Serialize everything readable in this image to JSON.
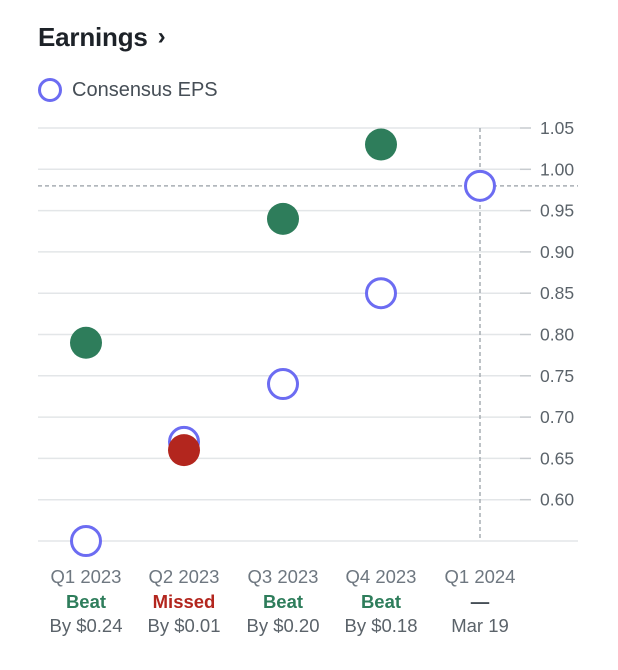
{
  "header": {
    "title": "Earnings",
    "chevron": "›"
  },
  "legend": {
    "label": "Consensus EPS"
  },
  "colors": {
    "estimate": "#6c6cf2",
    "beat": "#2e7d5b",
    "missed": "#b3261e",
    "upcoming": "#464e56",
    "grid": "#e3e6e8"
  },
  "chart_data": {
    "type": "scatter",
    "title": "Earnings",
    "ylim": [
      0.55,
      1.05
    ],
    "yticks": [
      "0.60",
      "0.65",
      "0.70",
      "0.75",
      "0.80",
      "0.85",
      "0.90",
      "0.95",
      "1.00",
      "1.05"
    ],
    "current_value_line": 0.98,
    "categories": [
      "Q1 2023",
      "Q2 2023",
      "Q3 2023",
      "Q4 2023",
      "Q1 2024"
    ],
    "series": [
      {
        "name": "Consensus EPS",
        "values": [
          0.55,
          0.67,
          0.74,
          0.85,
          0.98
        ]
      },
      {
        "values": [
          0.79,
          0.66,
          0.94,
          1.03,
          null
        ]
      }
    ],
    "results": [
      "Beat",
      "Missed",
      "Beat",
      "Beat",
      "—"
    ],
    "details": [
      "By $0.24",
      "By $0.01",
      "By $0.20",
      "By $0.18",
      "Mar 19"
    ]
  }
}
